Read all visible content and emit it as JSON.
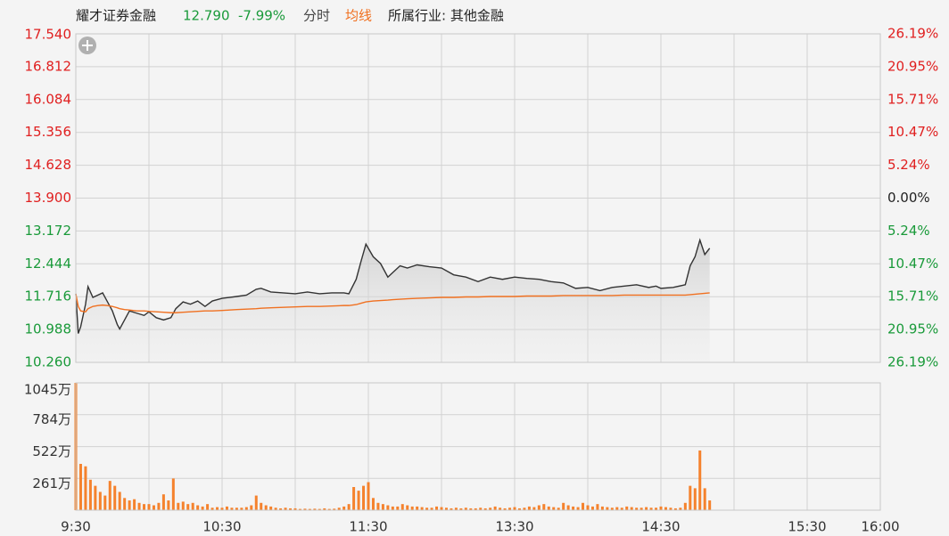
{
  "header": {
    "name": "耀才证券金融",
    "price": "12.790",
    "change": "-7.99%",
    "mode": "分时",
    "avg_label": "均线",
    "industry": "所属行业: 其他金融"
  },
  "chart_data": [
    {
      "type": "line",
      "x": [
        0,
        1,
        2,
        4,
        5,
        7,
        9,
        11,
        13,
        15,
        17,
        18,
        20,
        22,
        25,
        28,
        30,
        33,
        36,
        39,
        41,
        44,
        47,
        50,
        53,
        56,
        60,
        63,
        66,
        70,
        74,
        76,
        80,
        85,
        90,
        95,
        100,
        105,
        110,
        112,
        115,
        117,
        119,
        122,
        125,
        128,
        130,
        133,
        136,
        140,
        145,
        150,
        155,
        160,
        165,
        170,
        175,
        180,
        185,
        190,
        195,
        200,
        205,
        210,
        215,
        220,
        225,
        230,
        235,
        238,
        240,
        245,
        250,
        252,
        254,
        256,
        258,
        260
      ],
      "series": [
        {
          "name": "分时",
          "color": "#333333",
          "values": [
            11.78,
            10.9,
            11.05,
            11.55,
            11.94,
            11.7,
            11.75,
            11.8,
            11.6,
            11.4,
            11.1,
            11.0,
            11.2,
            11.4,
            11.35,
            11.3,
            11.38,
            11.25,
            11.2,
            11.25,
            11.45,
            11.6,
            11.55,
            11.62,
            11.5,
            11.62,
            11.68,
            11.7,
            11.72,
            11.75,
            11.88,
            11.9,
            11.82,
            11.8,
            11.78,
            11.82,
            11.78,
            11.8,
            11.8,
            11.78,
            12.1,
            12.5,
            12.88,
            12.6,
            12.45,
            12.15,
            12.25,
            12.4,
            12.35,
            12.42,
            12.38,
            12.35,
            12.2,
            12.15,
            12.05,
            12.15,
            12.1,
            12.15,
            12.12,
            12.1,
            12.05,
            12.02,
            11.9,
            11.92,
            11.85,
            11.92,
            11.95,
            11.98,
            11.92,
            11.95,
            11.9,
            11.92,
            11.98,
            12.4,
            12.6,
            12.97,
            12.65,
            12.79
          ]
        },
        {
          "name": "均线",
          "color": "#f07020",
          "values": [
            11.78,
            11.5,
            11.4,
            11.38,
            11.45,
            11.5,
            11.52,
            11.53,
            11.52,
            11.5,
            11.47,
            11.45,
            11.43,
            11.42,
            11.4,
            11.4,
            11.39,
            11.38,
            11.37,
            11.36,
            11.36,
            11.37,
            11.38,
            11.39,
            11.4,
            11.4,
            11.41,
            11.42,
            11.43,
            11.44,
            11.45,
            11.46,
            11.47,
            11.48,
            11.49,
            11.5,
            11.5,
            11.51,
            11.52,
            11.52,
            11.54,
            11.57,
            11.6,
            11.62,
            11.63,
            11.64,
            11.65,
            11.66,
            11.67,
            11.68,
            11.69,
            11.7,
            11.7,
            11.71,
            11.71,
            11.72,
            11.72,
            11.72,
            11.73,
            11.73,
            11.73,
            11.74,
            11.74,
            11.74,
            11.74,
            11.74,
            11.75,
            11.75,
            11.75,
            11.75,
            11.75,
            11.75,
            11.75,
            11.76,
            11.77,
            11.78,
            11.79,
            11.8
          ]
        }
      ],
      "xlim": [
        0,
        330
      ],
      "grid_x_step": 30,
      "ylim": [
        10.26,
        17.54
      ],
      "yticks": [
        {
          "value": 17.54,
          "label": "17.540"
        },
        {
          "value": 16.812,
          "label": "16.812"
        },
        {
          "value": 16.084,
          "label": "16.084"
        },
        {
          "value": 15.356,
          "label": "15.356"
        },
        {
          "value": 14.628,
          "label": "14.628"
        },
        {
          "value": 13.9,
          "label": "13.900"
        },
        {
          "value": 13.172,
          "label": "13.172"
        },
        {
          "value": 12.444,
          "label": "12.444"
        },
        {
          "value": 11.716,
          "label": "11.716"
        },
        {
          "value": 10.988,
          "label": "10.988"
        },
        {
          "value": 10.26,
          "label": "10.260"
        }
      ],
      "y2lim": [
        -26.19,
        26.19
      ],
      "y2ticks": [
        {
          "value": 26.19,
          "label": "26.19%"
        },
        {
          "value": 20.95,
          "label": "20.95%"
        },
        {
          "value": 15.71,
          "label": "15.71%"
        },
        {
          "value": 10.47,
          "label": "10.47%"
        },
        {
          "value": 5.24,
          "label": "5.24%"
        },
        {
          "value": 0,
          "label": "0.00%"
        },
        {
          "value": -5.24,
          "label": "5.24%"
        },
        {
          "value": -10.47,
          "label": "10.47%"
        },
        {
          "value": -15.71,
          "label": "15.71%"
        },
        {
          "value": -20.95,
          "label": "20.95%"
        },
        {
          "value": -26.19,
          "label": "26.19%"
        }
      ],
      "up_color": "#e02020",
      "down_color": "#1a9a3a",
      "grid": true
    },
    {
      "type": "bar",
      "color": "#f5822d",
      "x": [
        0,
        2,
        4,
        6,
        8,
        10,
        12,
        14,
        16,
        18,
        20,
        22,
        24,
        26,
        28,
        30,
        32,
        34,
        36,
        38,
        40,
        42,
        44,
        46,
        48,
        50,
        52,
        54,
        56,
        58,
        60,
        62,
        64,
        66,
        68,
        70,
        72,
        74,
        76,
        78,
        80,
        82,
        84,
        86,
        88,
        90,
        92,
        94,
        96,
        98,
        100,
        102,
        104,
        106,
        108,
        110,
        112,
        114,
        116,
        118,
        120,
        122,
        124,
        126,
        128,
        130,
        132,
        134,
        136,
        138,
        140,
        142,
        144,
        146,
        148,
        150,
        152,
        154,
        156,
        158,
        160,
        162,
        164,
        166,
        168,
        170,
        172,
        174,
        176,
        178,
        180,
        182,
        184,
        186,
        188,
        190,
        192,
        194,
        196,
        198,
        200,
        202,
        204,
        206,
        208,
        210,
        212,
        214,
        216,
        218,
        220,
        222,
        224,
        226,
        228,
        230,
        232,
        234,
        236,
        238,
        240,
        242,
        244,
        246,
        248,
        250,
        252,
        254,
        256,
        258,
        260
      ],
      "values": [
        1045,
        380,
        360,
        250,
        200,
        150,
        120,
        240,
        200,
        150,
        100,
        80,
        90,
        60,
        50,
        50,
        40,
        60,
        130,
        80,
        260,
        60,
        70,
        50,
        60,
        40,
        30,
        50,
        20,
        25,
        20,
        30,
        20,
        20,
        20,
        25,
        40,
        120,
        60,
        40,
        30,
        20,
        15,
        20,
        15,
        15,
        10,
        12,
        10,
        12,
        10,
        15,
        10,
        12,
        20,
        30,
        50,
        190,
        160,
        200,
        230,
        100,
        60,
        50,
        40,
        30,
        30,
        50,
        40,
        30,
        30,
        25,
        20,
        20,
        30,
        25,
        20,
        15,
        20,
        15,
        20,
        15,
        15,
        20,
        15,
        20,
        30,
        20,
        15,
        20,
        25,
        15,
        20,
        30,
        25,
        40,
        50,
        30,
        25,
        20,
        60,
        40,
        30,
        25,
        60,
        40,
        30,
        50,
        30,
        25,
        20,
        25,
        20,
        30,
        25,
        20,
        20,
        25,
        20,
        20,
        30,
        25,
        20,
        15,
        20,
        60,
        200,
        180,
        490,
        180,
        80
      ],
      "xlim": [
        0,
        330
      ],
      "grid_x_step": 30,
      "ylim": [
        0,
        1045
      ],
      "yticks": [
        {
          "value": 1045,
          "label": "1045万"
        },
        {
          "value": 784,
          "label": "784万"
        },
        {
          "value": 522,
          "label": "522万"
        },
        {
          "value": 261,
          "label": "261万"
        }
      ],
      "xticks": [
        {
          "value": 0,
          "label": "9:30"
        },
        {
          "value": 60,
          "label": "10:30"
        },
        {
          "value": 120,
          "label": "11:30"
        },
        {
          "value": 180,
          "label": "13:30"
        },
        {
          "value": 240,
          "label": "14:30"
        },
        {
          "value": 300,
          "label": "15:30"
        },
        {
          "value": 330,
          "label": "16:00"
        }
      ]
    }
  ]
}
